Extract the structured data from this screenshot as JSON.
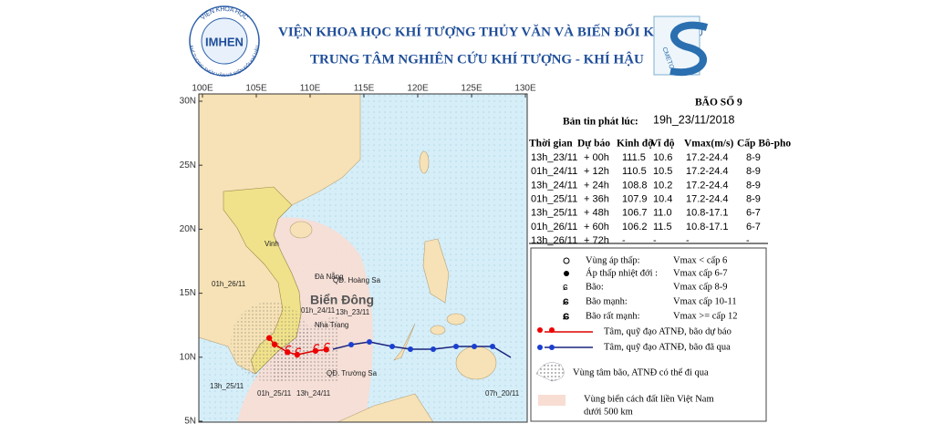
{
  "header": {
    "logo_text": "IMHEN",
    "logo_ring_top": "VIỆN KHOA HỌC",
    "logo_ring_bottom": "KHÍ TƯỢNG THỦY VĂN VÀ BIẾN ĐỔI KHÍ HẬU",
    "title": "VIỆN KHOA HỌC KHÍ TƯỢNG THỦY VĂN VÀ BIẾN ĐỔI KHÍ HẬU",
    "subtitle": "TRUNG TÂM NGHIÊN CỨU KHÍ TƯỢNG - KHÍ HẬU",
    "logo2_text": "CMETC"
  },
  "map": {
    "lon_ticks": [
      "100E",
      "105E",
      "110E",
      "115E",
      "120E",
      "125E",
      "130E"
    ],
    "lat_ticks": [
      "30N",
      "25N",
      "20N",
      "15N",
      "10N",
      "5N"
    ],
    "places": [
      "Vinh",
      "Đà Nẵng",
      "QĐ. Hoàng Sa",
      "Nha Trang",
      "QĐ. Trường Sa"
    ],
    "sea_name": "Biển Đông",
    "track_labels": [
      "01h_26/11",
      "01h_24/11",
      "13h_23/11",
      "13h_25/11",
      "01h_25/11",
      "13h_24/11",
      "07h_20/11"
    ]
  },
  "bulletin": {
    "storm": "BÃO SỐ 9",
    "issued_label": "Bản tin phát lúc:",
    "issued": "19h_23/11/2018"
  },
  "table": {
    "header": [
      "Thời gian",
      "Dự báo",
      "Kinh độ",
      "Vĩ độ",
      "Vmax(m/s)",
      "Cấp Bô-pho"
    ],
    "rows": [
      [
        "13h_23/11",
        "+ 00h",
        "111.5",
        "10.6",
        "17.2-24.4",
        "8-9"
      ],
      [
        "01h_24/11",
        "+ 12h",
        "110.5",
        "10.5",
        "17.2-24.4",
        "8-9"
      ],
      [
        "13h_24/11",
        "+ 24h",
        "108.8",
        "10.2",
        "17.2-24.4",
        "8-9"
      ],
      [
        "01h_25/11",
        "+ 36h",
        "107.9",
        "10.4",
        "17.2-24.4",
        "8-9"
      ],
      [
        "13h_25/11",
        "+ 48h",
        "106.7",
        "11.0",
        "10.8-17.1",
        "6-7"
      ],
      [
        "01h_26/11",
        "+ 60h",
        "106.2",
        "11.5",
        "10.8-17.1",
        "6-7"
      ],
      [
        "13h_26/11",
        "+ 72h",
        "-",
        "-",
        "-",
        "-"
      ]
    ]
  },
  "legend": [
    {
      "label": "Vùng áp thấp:",
      "value": "Vmax < cấp 6"
    },
    {
      "label": "Áp thấp nhiệt đới :",
      "value": "Vmax cấp 6-7"
    },
    {
      "label": "Bão:",
      "value": "Vmax cấp 8-9"
    },
    {
      "label": "Bão mạnh:",
      "value": "Vmax cấp 10-11"
    },
    {
      "label": "Bão rất mạnh:",
      "value": "Vmax >= cấp 12"
    },
    {
      "label": "Tâm, quỹ đạo ATNĐ, bão dự báo"
    },
    {
      "label": "Tâm, quỹ đạo ATNĐ, bão đã qua"
    },
    {
      "label": "Vùng tâm bão, ATNĐ có thể đi qua"
    },
    {
      "label": "Vùng biển cách đất liền Việt Nam",
      "value": "dưới 500 km"
    }
  ]
}
